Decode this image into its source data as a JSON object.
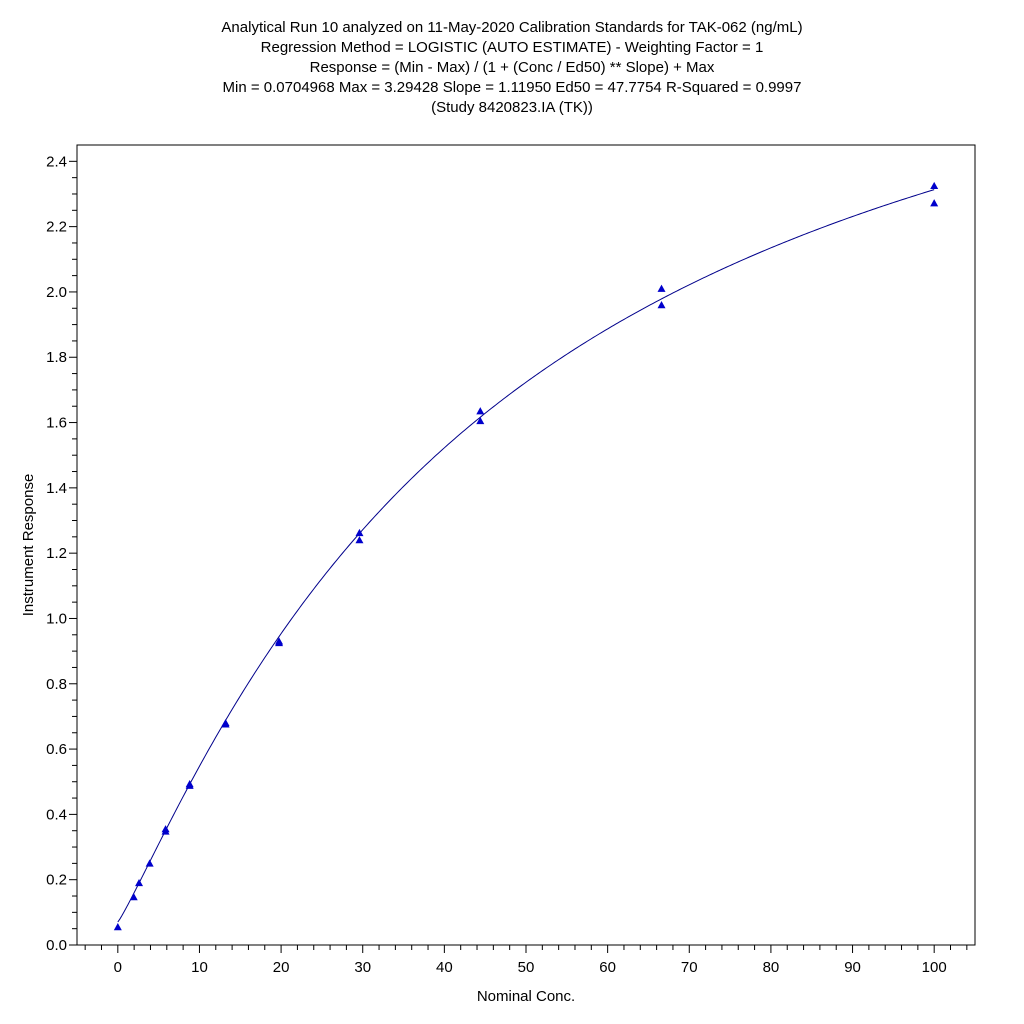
{
  "chart_data": {
    "type": "scatter",
    "title_lines": [
      "Analytical Run 10 analyzed on 11-May-2020 Calibration Standards for TAK-062 (ng/mL)",
      "Regression Method = LOGISTIC (AUTO ESTIMATE) - Weighting Factor = 1",
      "Response = (Min - Max) / (1 + (Conc / Ed50) ** Slope) + Max",
      "Min = 0.0704968 Max = 3.29428 Slope = 1.11950 Ed50 = 47.7754 R-Squared = 0.9997",
      "(Study 8420823.IA (TK))"
    ],
    "xlabel": "Nominal Conc.",
    "ylabel": "Instrument Response",
    "xlim": [
      -5,
      105
    ],
    "ylim": [
      0,
      2.45
    ],
    "x_ticks": [
      "0",
      "10",
      "20",
      "30",
      "40",
      "50",
      "60",
      "70",
      "80",
      "90",
      "100"
    ],
    "y_ticks": [
      "0.0",
      "0.2",
      "0.4",
      "0.6",
      "0.8",
      "1.0",
      "1.2",
      "1.4",
      "1.6",
      "1.8",
      "2.0",
      "2.2",
      "2.4"
    ],
    "grid": false,
    "marker_color": "#0000cc",
    "curve_color": "#00008b",
    "fit": {
      "model": "logistic",
      "min": 0.0704968,
      "max": 3.29428,
      "slope": 1.1195,
      "ed50": 47.7754
    },
    "points": [
      {
        "x": 0,
        "y": 0.055
      },
      {
        "x": 1.95,
        "y": 0.147
      },
      {
        "x": 2.6,
        "y": 0.19
      },
      {
        "x": 3.9,
        "y": 0.25
      },
      {
        "x": 5.85,
        "y": 0.348
      },
      {
        "x": 5.85,
        "y": 0.355
      },
      {
        "x": 8.8,
        "y": 0.488
      },
      {
        "x": 8.8,
        "y": 0.493
      },
      {
        "x": 13.2,
        "y": 0.676
      },
      {
        "x": 13.2,
        "y": 0.68
      },
      {
        "x": 19.75,
        "y": 0.925
      },
      {
        "x": 19.75,
        "y": 0.93
      },
      {
        "x": 29.6,
        "y": 1.24
      },
      {
        "x": 29.6,
        "y": 1.262
      },
      {
        "x": 44.4,
        "y": 1.605
      },
      {
        "x": 44.4,
        "y": 1.635
      },
      {
        "x": 66.6,
        "y": 1.96
      },
      {
        "x": 66.6,
        "y": 2.01
      },
      {
        "x": 100,
        "y": 2.272
      },
      {
        "x": 100,
        "y": 2.325
      }
    ]
  }
}
